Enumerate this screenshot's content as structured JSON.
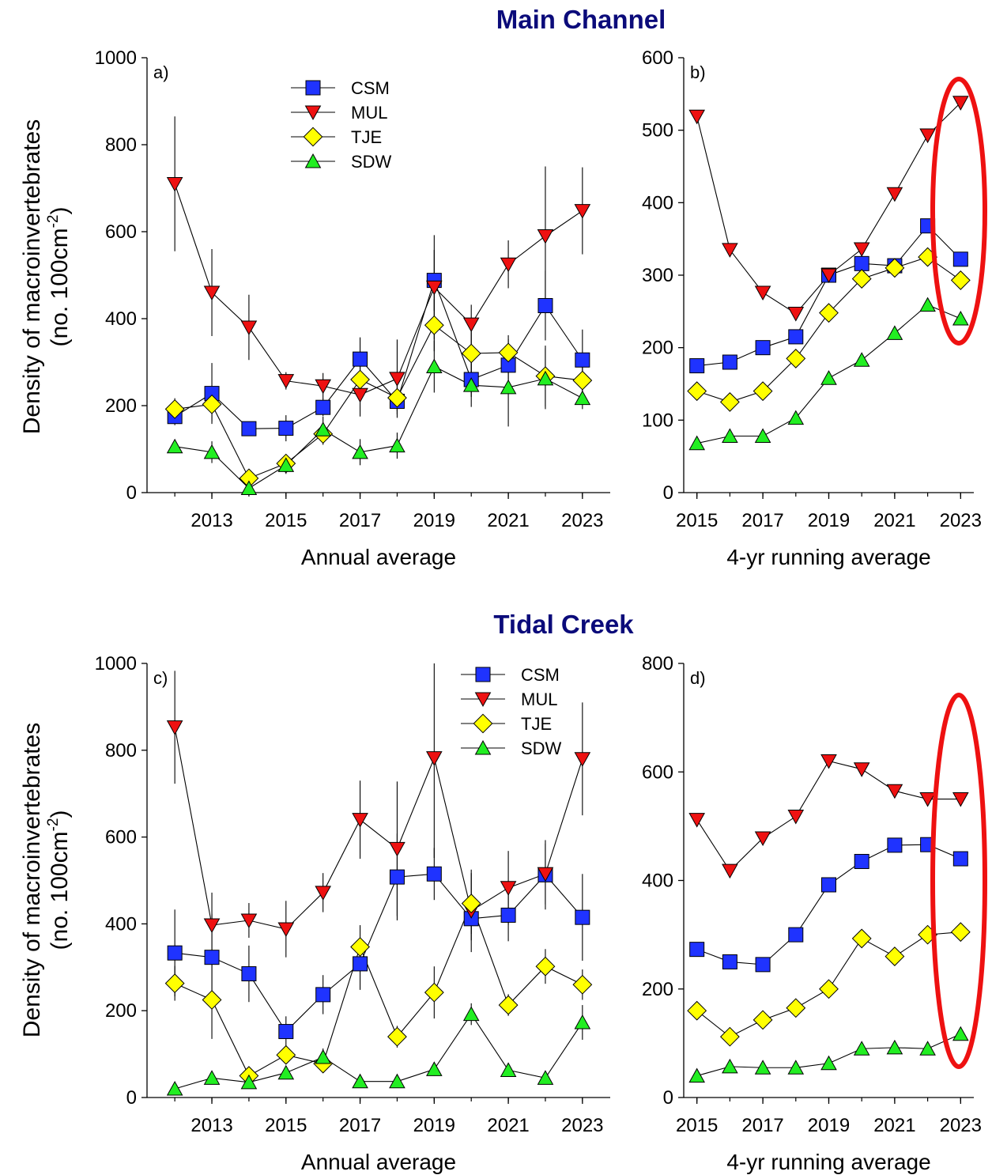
{
  "sections": {
    "main": "Main Channel",
    "tidal": "Tidal Creek"
  },
  "ylabel": {
    "line1": "Density of macroinvertebrates",
    "line2": "(no. 100cm",
    "sup": "-2",
    "close": ")"
  },
  "legend": [
    "CSM",
    "MUL",
    "TJE",
    "SDW"
  ],
  "colors": {
    "CSM": "#1f33ff",
    "MUL": "#ee1111",
    "TJE": "#ffff00",
    "SDW": "#22ee22",
    "ellipse": "#ee1111",
    "title": "#0b0b7a"
  },
  "chart_data": [
    {
      "id": "a",
      "type": "line",
      "panel_label": "a)",
      "xlabel": "Annual average",
      "ylabel": "Density of macroinvertebrates (no. 100cm-2)",
      "xlim": [
        2011.25,
        2023.75
      ],
      "ylim": [
        0,
        1000
      ],
      "xticks": [
        2013,
        2015,
        2017,
        2019,
        2021,
        2023
      ],
      "yticks": [
        0,
        200,
        400,
        600,
        800,
        1000
      ],
      "legend": true,
      "legend_position": "top-center",
      "x": [
        2012,
        2013,
        2014,
        2015,
        2016,
        2017,
        2018,
        2019,
        2020,
        2021,
        2022,
        2023
      ],
      "series": [
        {
          "name": "CSM",
          "values": [
            175,
            228,
            147,
            148,
            196,
            307,
            210,
            488,
            260,
            293,
            430,
            305
          ],
          "err": [
            20,
            70,
            15,
            30,
            20,
            50,
            30,
            70,
            40,
            60,
            80,
            70
          ]
        },
        {
          "name": "MUL",
          "values": [
            710,
            460,
            380,
            257,
            245,
            225,
            262,
            472,
            387,
            525,
            590,
            648
          ],
          "err": [
            155,
            100,
            75,
            20,
            30,
            50,
            90,
            120,
            45,
            55,
            160,
            100
          ]
        },
        {
          "name": "TJE",
          "values": [
            192,
            203,
            33,
            67,
            135,
            260,
            218,
            385,
            320,
            322,
            268,
            258
          ],
          "err": [
            25,
            40,
            15,
            15,
            25,
            40,
            30,
            60,
            50,
            40,
            70,
            50
          ]
        },
        {
          "name": "SDW",
          "values": [
            106,
            93,
            10,
            63,
            145,
            93,
            108,
            290,
            247,
            242,
            262,
            217
          ],
          "err": [
            15,
            25,
            10,
            20,
            30,
            30,
            30,
            60,
            50,
            90,
            70,
            25
          ]
        }
      ]
    },
    {
      "id": "b",
      "type": "line",
      "panel_label": "b)",
      "xlabel": "4-yr running average",
      "xlim": [
        2014.6,
        2023.4
      ],
      "ylim": [
        0,
        600
      ],
      "xticks": [
        2015,
        2017,
        2019,
        2021,
        2023
      ],
      "yticks": [
        0,
        100,
        200,
        300,
        400,
        500,
        600
      ],
      "legend": false,
      "highlight": "ellipse around 2023",
      "x": [
        2015,
        2016,
        2017,
        2018,
        2019,
        2020,
        2021,
        2022,
        2023
      ],
      "series": [
        {
          "name": "CSM",
          "values": [
            175,
            180,
            200,
            215,
            300,
            316,
            313,
            368,
            322
          ]
        },
        {
          "name": "MUL",
          "values": [
            519,
            335,
            276,
            247,
            300,
            336,
            412,
            493,
            538
          ]
        },
        {
          "name": "TJE",
          "values": [
            140,
            125,
            140,
            185,
            248,
            295,
            310,
            325,
            293
          ]
        },
        {
          "name": "SDW",
          "values": [
            68,
            78,
            78,
            103,
            158,
            183,
            220,
            259,
            240
          ]
        }
      ]
    },
    {
      "id": "c",
      "type": "line",
      "panel_label": "c)",
      "xlabel": "Annual average",
      "ylabel": "Density of macroinvertebrates (no. 100cm-2)",
      "xlim": [
        2011.25,
        2023.75
      ],
      "ylim": [
        0,
        1000
      ],
      "xticks": [
        2013,
        2015,
        2017,
        2019,
        2021,
        2023
      ],
      "yticks": [
        0,
        200,
        400,
        600,
        800,
        1000
      ],
      "legend": true,
      "legend_position": "top-right",
      "x": [
        2012,
        2013,
        2014,
        2015,
        2016,
        2017,
        2018,
        2019,
        2020,
        2021,
        2022,
        2023
      ],
      "series": [
        {
          "name": "CSM",
          "values": [
            333,
            323,
            285,
            152,
            237,
            308,
            508,
            515,
            412,
            420,
            513,
            415
          ],
          "err": [
            100,
            100,
            65,
            35,
            45,
            60,
            100,
            60,
            50,
            60,
            80,
            100
          ]
        },
        {
          "name": "MUL",
          "values": [
            853,
            397,
            408,
            388,
            472,
            640,
            573,
            782,
            430,
            483,
            515,
            780
          ],
          "err": [
            130,
            75,
            40,
            65,
            45,
            90,
            155,
            230,
            95,
            85,
            70,
            130
          ]
        },
        {
          "name": "TJE",
          "values": [
            263,
            225,
            50,
            98,
            78,
            347,
            140,
            242,
            447,
            213,
            302,
            260
          ],
          "err": [
            40,
            90,
            10,
            20,
            15,
            50,
            25,
            60,
            70,
            25,
            40,
            35
          ]
        },
        {
          "name": "SDW",
          "values": [
            20,
            45,
            35,
            57,
            93,
            37,
            37,
            65,
            192,
            63,
            45,
            173
          ],
          "err": [
            5,
            10,
            8,
            15,
            20,
            8,
            8,
            15,
            25,
            10,
            10,
            40
          ]
        }
      ]
    },
    {
      "id": "d",
      "type": "line",
      "panel_label": "d)",
      "xlabel": "4-yr running average",
      "xlim": [
        2014.6,
        2023.4
      ],
      "ylim": [
        0,
        800
      ],
      "xticks": [
        2015,
        2017,
        2019,
        2021,
        2023
      ],
      "yticks": [
        0,
        200,
        400,
        600,
        800
      ],
      "legend": false,
      "highlight": "ellipse around 2023",
      "x": [
        2015,
        2016,
        2017,
        2018,
        2019,
        2020,
        2021,
        2022,
        2023
      ],
      "series": [
        {
          "name": "CSM",
          "values": [
            273,
            250,
            245,
            300,
            392,
            435,
            465,
            466,
            440
          ]
        },
        {
          "name": "MUL",
          "values": [
            512,
            418,
            478,
            518,
            620,
            605,
            565,
            550,
            550
          ]
        },
        {
          "name": "TJE",
          "values": [
            160,
            112,
            143,
            165,
            200,
            293,
            260,
            300,
            305
          ]
        },
        {
          "name": "SDW",
          "values": [
            40,
            57,
            55,
            55,
            63,
            90,
            92,
            90,
            117
          ]
        }
      ]
    }
  ]
}
